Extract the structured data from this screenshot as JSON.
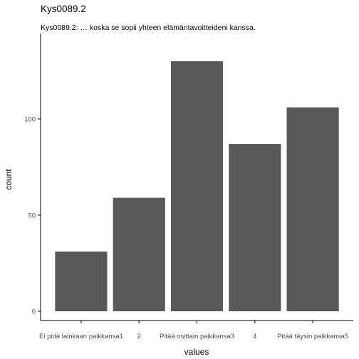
{
  "chart_data": {
    "type": "bar",
    "title": "Kys0089.2",
    "subtitle": "Kys0089.2: … koska se sopii yhteen elämäntavoitteideni kanssa.",
    "xlabel": "values",
    "ylabel": "count",
    "categories": [
      "Ei pidä lainkaan paikkansa1",
      "2",
      "Pitää osittain paikkansa3",
      "4",
      "Pitää täysin paikkansa5"
    ],
    "values": [
      31,
      59,
      130,
      87,
      106
    ],
    "ylim": [
      0,
      137
    ],
    "yticks": [
      0,
      50,
      100
    ],
    "grid": false,
    "legend": "none",
    "bar_color": "#595959",
    "axis_color": "#000000",
    "tick_label_color": "#4d4d4d"
  }
}
